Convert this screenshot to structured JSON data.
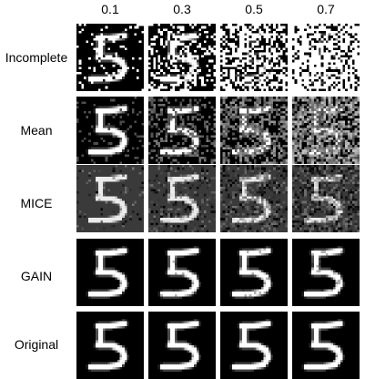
{
  "columns": [
    "0.1",
    "0.3",
    "0.5",
    "0.7"
  ],
  "rows": [
    {
      "label": "Incomplete",
      "mode": "incomplete",
      "background": "#000000"
    },
    {
      "label": "Mean",
      "mode": "mean",
      "background": "#000000"
    },
    {
      "label": "MICE",
      "mode": "mice",
      "background": "#3a3a3a"
    },
    {
      "label": "GAIN",
      "mode": "gain",
      "background": "#000000"
    },
    {
      "label": "Original",
      "mode": "original",
      "background": "#000000"
    }
  ],
  "missing_rates": [
    0.1,
    0.3,
    0.5,
    0.7
  ]
}
